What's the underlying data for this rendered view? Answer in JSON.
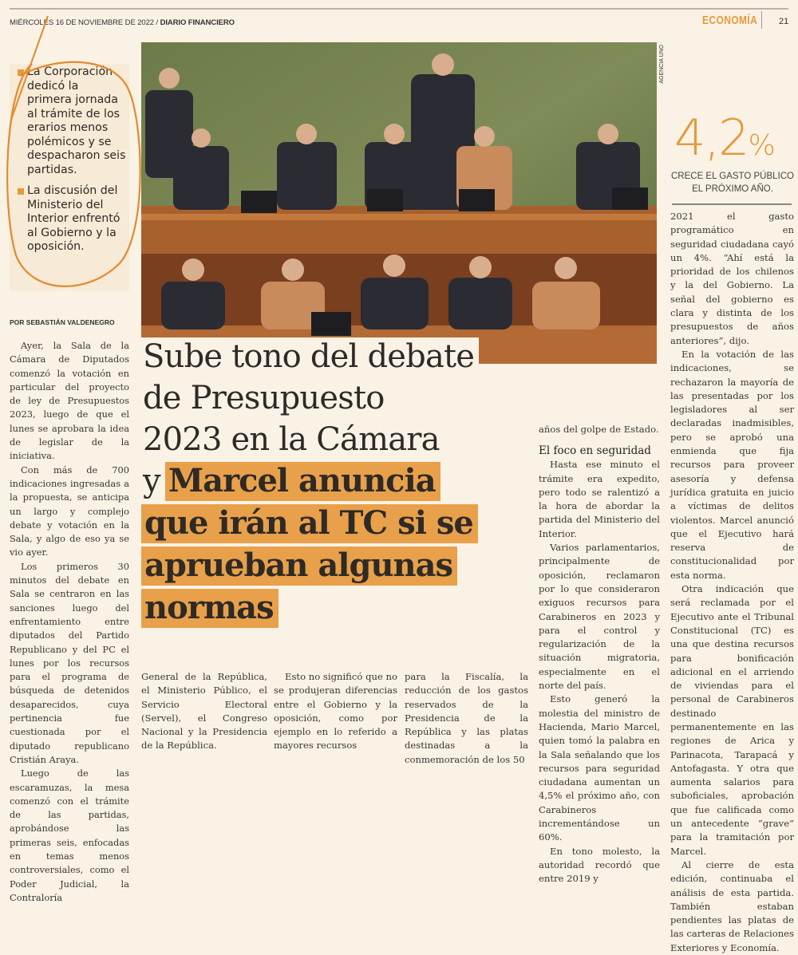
{
  "header": {
    "date": "MIÉRCOLES 16 DE NOVIEMBRE DE 2022 /",
    "publication": "DIARIO FINANCIERO",
    "section": "ECONOMÍA",
    "page_number": "21"
  },
  "colors": {
    "accent": "#e39a3b",
    "highlight": "#e8a04a",
    "paper": "#fbf2e6"
  },
  "callout": {
    "bullets": [
      "La Corporación dedicó la primera jornada al trámite de los erarios menos polémicos y se despacharon seis partidas.",
      "La discusión del Ministerio del Interior enfrentó al Gobierno y la oposición."
    ]
  },
  "photo": {
    "credit": "AGENCIA UNO"
  },
  "stat": {
    "value": "4,2",
    "unit": "%",
    "caption": "CRECE EL GASTO PÚBLICO EL PRÓXIMO AÑO."
  },
  "headline": {
    "light_lines": [
      "Sube tono del debate",
      "de Presupuesto",
      "2023 en la Cámara",
      "y"
    ],
    "bold_lines": [
      "Marcel anuncia",
      "que irán al TC si se",
      "aprueban algunas",
      "normas"
    ]
  },
  "byline": "POR SEBASTIÁN VALDENEGRO",
  "columns": {
    "col1": [
      "Ayer, la Sala de la Cámara de Diputados comenzó la votación en particular del proyecto de ley de Presupuestos 2023, luego de que el lunes se aprobara la idea de legislar de la iniciativa.",
      "Con más de 700 indicaciones ingresadas a la propuesta, se anticipa un largo y complejo debate y votación en la Sala, y algo de eso ya se vio ayer.",
      "Los primeros 30 minutos del debate en Sala se centraron en las sanciones luego del enfrentamiento entre diputados del Partido Republicano y del PC el lunes por los recursos para el programa de búsqueda de detenidos desaparecidos, cuya pertinencia fue cuestionada por el diputado republicano Cristián Araya.",
      "Luego de las escaramuzas, la mesa comenzó con el trámite de las partidas, aprobándose las primeras seis, enfocadas en temas menos controversiales, como el Poder Judicial, la Contraloría"
    ],
    "col2": [
      "General de la República, el Ministerio Público, el Servicio Electoral (Servel), el Congreso Nacional y la Presidencia de la República."
    ],
    "col3": [
      "Esto no significó que no se produjeran diferencias entre el Gobierno y la oposición, como por ejemplo en lo referido a mayores recursos"
    ],
    "col4": [
      "para la Fiscalía, la reducción de los gastos reservados de la Presidencia de la República y las platas destinadas a la conmemoración de los 50"
    ],
    "col5_start": "años del golpe de Estado.",
    "subhead": "El foco en seguridad",
    "col5": [
      "Hasta ese minuto el trámite era expedito, pero todo se ralentizó a la hora de abordar la partida del Ministerio del Interior.",
      "Varios parlamentarios, principalmente de oposición, reclamaron por lo que consideraron exiguos recursos para Carabineros en 2023 y para el control y regularización de la situación migratoria, especialmente en el norte del país.",
      "Esto generó la molestia del ministro de Hacienda, Mario Marcel, quien tomó la palabra en la Sala señalando que los recursos para seguridad ciudadana aumentan un 4,5% el próximo año, con Carabineros incrementándose un 60%.",
      "En tono molesto, la autoridad recordó que entre 2019 y"
    ],
    "col6_start": "2021 el gasto programático en seguridad ciudadana cayó un 4%. “Ahí está la prioridad de los chilenos y la del Gobierno. La señal del gobierno es clara y distinta de los presupuestos de años anteriores”, dijo.",
    "col6": [
      "En la votación de las indicaciones, se rechazaron la mayoría de las presentadas por los legisladores al ser declaradas inadmisibles, pero se aprobó una enmienda que fija recursos para proveer asesoría y defensa jurídica gratuita en juicio a víctimas de delitos violentos. Marcel anunció que el Ejecutivo hará reserva de constitucionalidad por esta norma.",
      "Otra indicación que será reclamada por el Ejecutivo ante el Tribunal Constitucional (TC) es una que destina recursos para bonificación adicional en el arriendo de viviendas para el personal de Carabineros destinado permanentemente en las regiones de Arica y Parinacota, Tarapacá y Antofagasta. Y otra que aumenta salarios para suboficiales, aprobación que fue calificada como un antecedente “grave” para la tramitación por Marcel.",
      "Al cierre de esta edición, continuaba el análisis de esta partida. También estaban pendientes las platas de las carteras de Relaciones Exteriores y Economía."
    ]
  }
}
